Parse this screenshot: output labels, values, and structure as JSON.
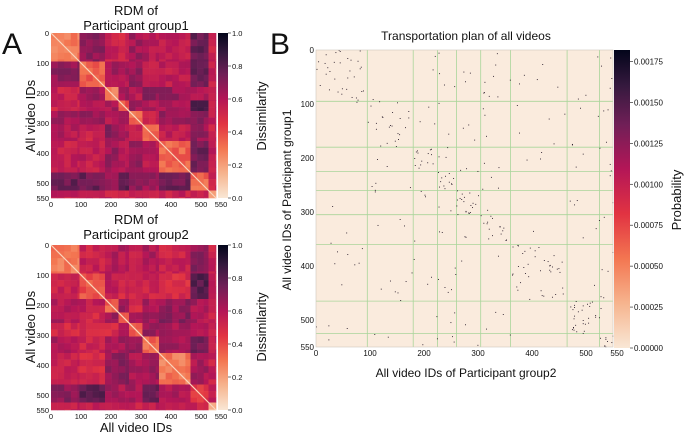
{
  "panel_labels": {
    "a": "A",
    "b": "B"
  },
  "chart_data": [
    {
      "id": "rdm1",
      "type": "heatmap",
      "title": [
        "RDM of",
        "Participant group1"
      ],
      "xlabel": "",
      "ylabel": "All video IDs",
      "x_ticks": [
        "0",
        "100",
        "200",
        "300",
        "400",
        "500",
        "550"
      ],
      "y_ticks": [
        "0",
        "100",
        "200",
        "300",
        "400",
        "500",
        "550"
      ],
      "tick_values": [
        0,
        100,
        200,
        300,
        400,
        500,
        550
      ],
      "xlim": [
        0,
        550
      ],
      "ylim": [
        0,
        550
      ],
      "colorbar": {
        "label": "Dissimilarity",
        "ticks": [
          "1.0",
          "0.8",
          "0.6",
          "0.4",
          "0.2",
          "0.0"
        ],
        "range": [
          0,
          1
        ]
      },
      "colormap": "rocket_r",
      "block_boundaries": [
        0,
        95,
        180,
        225,
        260,
        305,
        360,
        465,
        525,
        550
      ]
    },
    {
      "id": "rdm2",
      "type": "heatmap",
      "title": [
        "RDM of",
        "Participant group2"
      ],
      "xlabel": "All video IDs",
      "ylabel": "All video IDs",
      "x_ticks": [
        "0",
        "100",
        "200",
        "300",
        "400",
        "500",
        "550"
      ],
      "y_ticks": [
        "0",
        "100",
        "200",
        "300",
        "400",
        "500",
        "550"
      ],
      "tick_values": [
        0,
        100,
        200,
        300,
        400,
        500,
        550
      ],
      "xlim": [
        0,
        550
      ],
      "ylim": [
        0,
        550
      ],
      "colorbar": {
        "label": "Dissimilarity",
        "ticks": [
          "1.0",
          "0.8",
          "0.6",
          "0.4",
          "0.2",
          "0.0"
        ],
        "range": [
          0,
          1
        ]
      },
      "colormap": "rocket_r",
      "block_boundaries": [
        0,
        95,
        180,
        225,
        260,
        305,
        360,
        465,
        525,
        550
      ]
    },
    {
      "id": "transport",
      "type": "heatmap",
      "title": "Transportation plan of all videos",
      "xlabel": "All video IDs of Participant group2",
      "ylabel": "All video IDs of Participant group1",
      "x_ticks": [
        "0",
        "100",
        "200",
        "300",
        "400",
        "500",
        "550"
      ],
      "y_ticks": [
        "0",
        "100",
        "200",
        "300",
        "400",
        "500",
        "550"
      ],
      "tick_values": [
        0,
        100,
        200,
        300,
        400,
        500,
        550
      ],
      "xlim": [
        0,
        550
      ],
      "ylim": [
        0,
        550
      ],
      "colorbar": {
        "label": "Probability",
        "ticks": [
          "0.00175",
          "0.00150",
          "0.00125",
          "0.00100",
          "0.00075",
          "0.00050",
          "0.00025",
          "0.00000"
        ],
        "tick_values": [
          0.00175,
          0.0015,
          0.00125,
          0.001,
          0.00075,
          0.0005,
          0.00025,
          0
        ],
        "range": [
          0,
          0.00182
        ]
      },
      "colormap": "rocket_r",
      "block_boundaries": [
        95,
        180,
        225,
        260,
        305,
        360,
        465,
        525
      ],
      "note_values": "sparse near-diagonal entries, each ~0.00182, background 0"
    }
  ]
}
